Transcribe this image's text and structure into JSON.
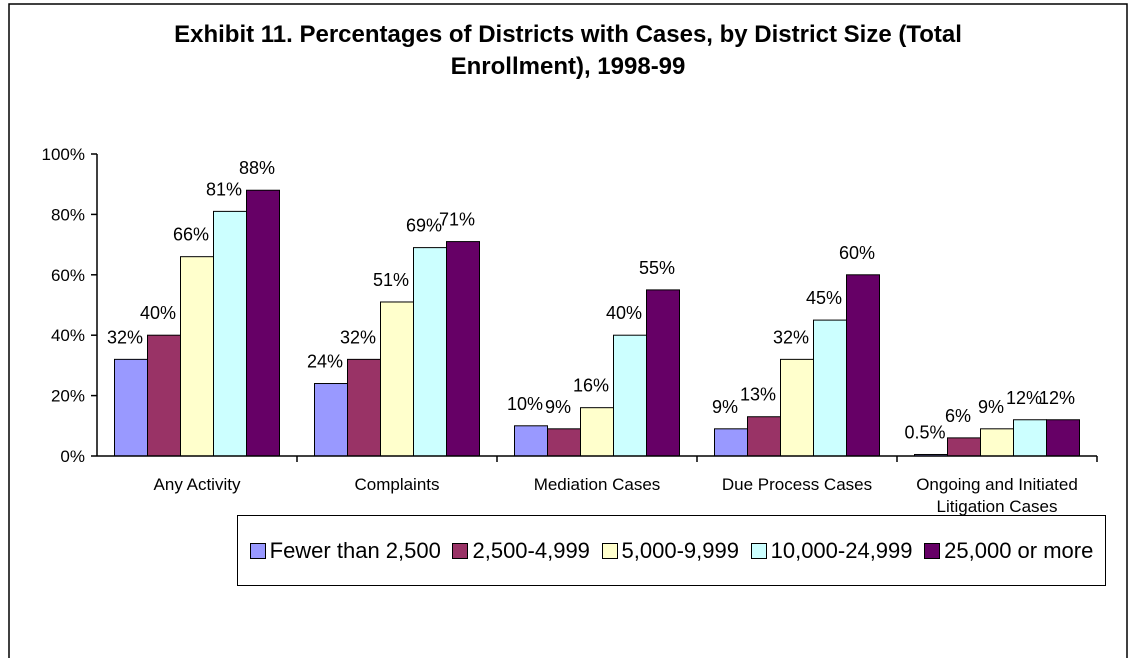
{
  "chart_data": {
    "type": "bar",
    "title": "Exhibit 11. Percentages of Districts with Cases, by District Size (Total Enrollment), 1998-99",
    "categories": [
      "Any Activity",
      "Complaints",
      "Mediation Cases",
      "Due Process Cases",
      "Ongoing and Initiated Litigation Cases"
    ],
    "series": [
      {
        "name": "Fewer than 2,500",
        "color": "#9999ff",
        "values": [
          32,
          24,
          10,
          9,
          0.5
        ],
        "value_labels": [
          "32%",
          "24%",
          "10%",
          "9%",
          "0.5%"
        ]
      },
      {
        "name": "2,500-4,999",
        "color": "#993366",
        "values": [
          40,
          32,
          9,
          13,
          6
        ],
        "value_labels": [
          "40%",
          "32%",
          "9%",
          "13%",
          "6%"
        ]
      },
      {
        "name": "5,000-9,999",
        "color": "#ffffcc",
        "values": [
          66,
          51,
          16,
          32,
          9
        ],
        "value_labels": [
          "66%",
          "51%",
          "16%",
          "32%",
          "9%"
        ]
      },
      {
        "name": "10,000-24,999",
        "color": "#ccffff",
        "values": [
          81,
          69,
          40,
          45,
          12
        ],
        "value_labels": [
          "81%",
          "69%",
          "40%",
          "45%",
          "12%"
        ]
      },
      {
        "name": "25,000 or more",
        "color": "#660066",
        "values": [
          88,
          71,
          55,
          60,
          12
        ],
        "value_labels": [
          "88%",
          "71%",
          "55%",
          "60%",
          "12%"
        ]
      }
    ],
    "ylim": [
      0,
      100
    ],
    "yticks": [
      {
        "value": 0,
        "label": "0%"
      },
      {
        "value": 20,
        "label": "20%"
      },
      {
        "value": 40,
        "label": "40%"
      },
      {
        "value": 60,
        "label": "60%"
      },
      {
        "value": 80,
        "label": "80%"
      },
      {
        "value": 100,
        "label": "100%"
      }
    ],
    "legend": "bottom"
  }
}
